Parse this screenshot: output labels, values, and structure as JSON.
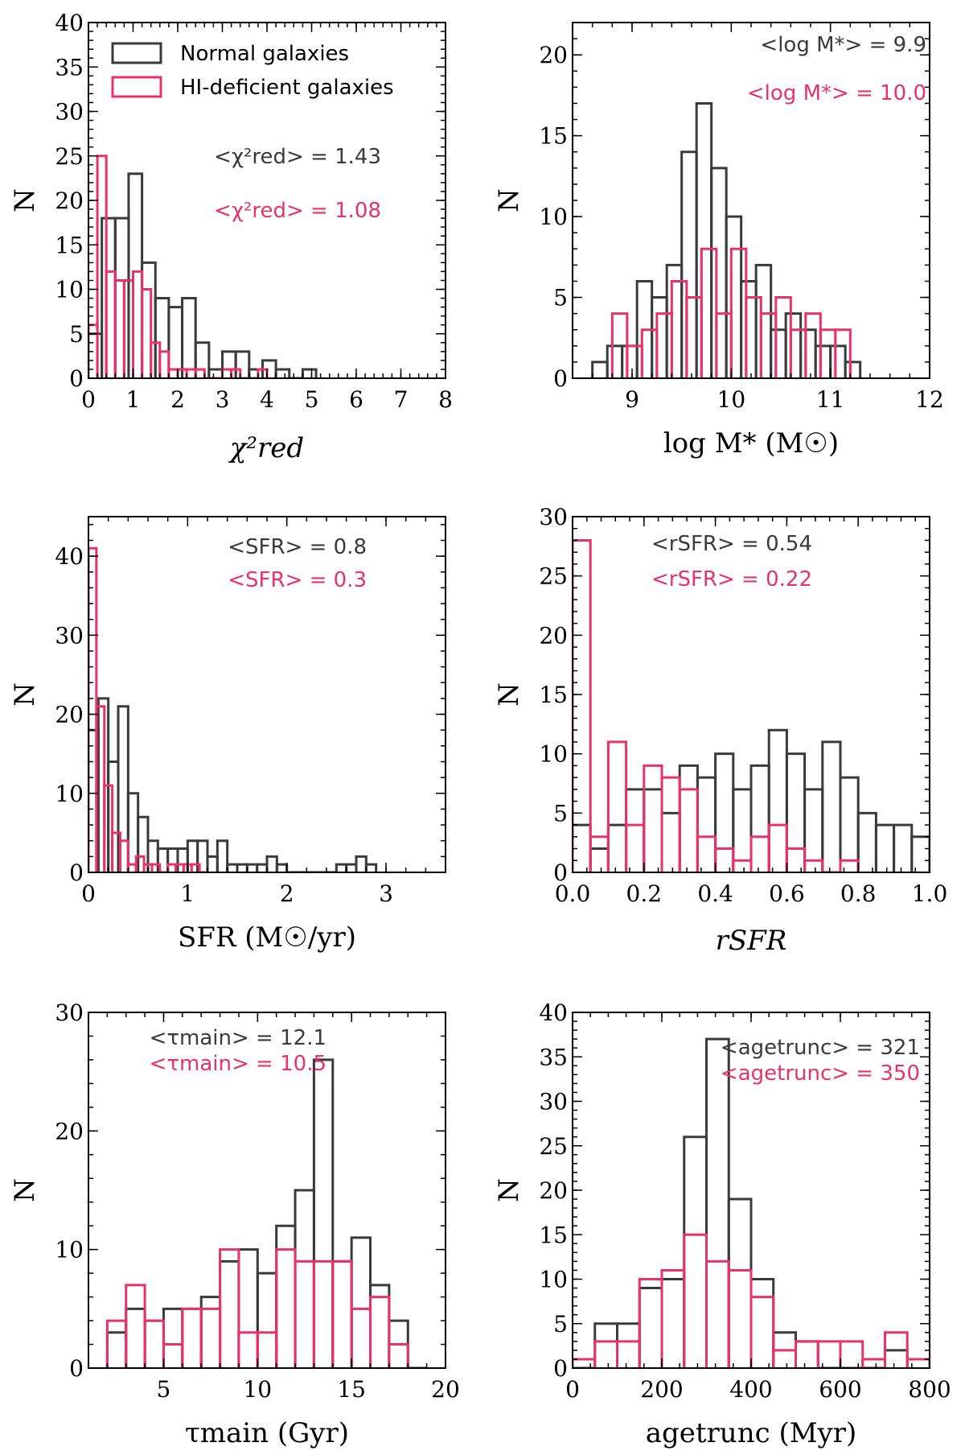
{
  "colors": {
    "normal": "#3a3a3a",
    "deficient": "#e8336a"
  },
  "legend": {
    "normal_label": "Normal galaxies",
    "deficient_label": "HI-deficient galaxies",
    "placement": "top-left of first panel"
  },
  "chart_data": [
    {
      "type": "histogram",
      "id": "chi2",
      "xlabel": "χ²red",
      "ylabel": "N",
      "xlim": [
        0,
        8
      ],
      "ylim": [
        0,
        40
      ],
      "xticks": [
        0,
        1,
        2,
        3,
        4,
        5,
        6,
        7,
        8
      ],
      "yticks": [
        0,
        5,
        10,
        15,
        20,
        25,
        30,
        35,
        40
      ],
      "annotations": [
        {
          "series": "normal",
          "text": "<χ²red> = 1.43",
          "value": 1.43
        },
        {
          "series": "deficient",
          "text": "<χ²red> = 1.08",
          "value": 1.08
        }
      ],
      "series": [
        {
          "name": "Normal galaxies",
          "key": "normal",
          "edges": [
            0,
            0.3,
            0.6,
            0.9,
            1.2,
            1.5,
            1.8,
            2.1,
            2.4,
            2.7,
            3.0,
            3.3,
            3.6,
            3.9,
            4.2,
            4.5,
            4.8,
            5.1
          ],
          "counts": [
            5,
            18,
            18,
            23,
            13,
            9,
            8,
            9,
            4,
            1,
            3,
            3,
            1,
            2,
            1,
            0,
            1
          ]
        },
        {
          "name": "HI-deficient galaxies",
          "key": "deficient",
          "edges": [
            0,
            0.2,
            0.4,
            0.6,
            0.8,
            1.0,
            1.2,
            1.4,
            1.6,
            1.8,
            2.0,
            2.2,
            2.4,
            2.6,
            2.8,
            3.0,
            3.2,
            3.4,
            3.6,
            3.8,
            4.0
          ],
          "counts": [
            6,
            25,
            12,
            11,
            11,
            12,
            10,
            4,
            3,
            1,
            1,
            1,
            1,
            0,
            0,
            1,
            1,
            0,
            0,
            1
          ]
        }
      ]
    },
    {
      "type": "histogram",
      "id": "mass",
      "xlabel": "log M* (M☉)",
      "ylabel": "N",
      "xlim": [
        8.4,
        12
      ],
      "ylim": [
        0,
        22
      ],
      "xticks": [
        9,
        10,
        11,
        12
      ],
      "yticks": [
        0,
        5,
        10,
        15,
        20
      ],
      "annotations": [
        {
          "series": "normal",
          "text": "<log M*> = 9.9",
          "value": 9.9
        },
        {
          "series": "deficient",
          "text": "<log M*> = 10.0",
          "value": 10.0
        }
      ],
      "series": [
        {
          "name": "Normal galaxies",
          "key": "normal",
          "edges": [
            8.6,
            8.75,
            8.9,
            9.05,
            9.2,
            9.35,
            9.5,
            9.65,
            9.8,
            9.95,
            10.1,
            10.25,
            10.4,
            10.55,
            10.7,
            10.85,
            11.0,
            11.15,
            11.3
          ],
          "counts": [
            1,
            2,
            2,
            6,
            5,
            7,
            14,
            17,
            13,
            10,
            6,
            7,
            3,
            4,
            3,
            2,
            2,
            1
          ]
        },
        {
          "name": "HI-deficient galaxies",
          "key": "deficient",
          "edges": [
            8.8,
            8.95,
            9.1,
            9.25,
            9.4,
            9.55,
            9.7,
            9.85,
            10.0,
            10.15,
            10.3,
            10.45,
            10.6,
            10.75,
            10.9,
            11.05,
            11.2
          ],
          "counts": [
            4,
            2,
            3,
            4,
            6,
            5,
            8,
            4,
            8,
            5,
            4,
            5,
            3,
            4,
            3,
            3,
            1
          ]
        }
      ]
    },
    {
      "type": "histogram",
      "id": "sfr",
      "xlabel": "SFR (M☉/yr)",
      "ylabel": "N",
      "xlim": [
        0,
        3.6
      ],
      "ylim": [
        0,
        45
      ],
      "xticks": [
        0,
        1,
        2,
        3
      ],
      "yticks": [
        0,
        10,
        20,
        30,
        40
      ],
      "annotations": [
        {
          "series": "normal",
          "text": "<SFR> = 0.8",
          "value": 0.8
        },
        {
          "series": "deficient",
          "text": "<SFR> = 0.3",
          "value": 0.3
        }
      ],
      "series": [
        {
          "name": "Normal galaxies",
          "key": "normal",
          "edges": [
            0,
            0.1,
            0.2,
            0.3,
            0.4,
            0.5,
            0.6,
            0.7,
            0.8,
            0.9,
            1.0,
            1.1,
            1.2,
            1.3,
            1.4,
            1.5,
            1.6,
            1.7,
            1.8,
            1.9,
            2.0,
            2.1,
            2.2,
            2.3,
            2.4,
            2.5,
            2.6,
            2.7,
            2.8,
            2.9
          ],
          "counts": [
            18,
            22,
            14,
            21,
            10,
            7,
            4,
            3,
            3,
            3,
            4,
            4,
            2,
            4,
            1,
            1,
            1,
            1,
            2,
            1,
            0,
            0,
            0,
            0,
            0,
            1,
            1,
            2,
            1
          ]
        },
        {
          "name": "HI-deficient galaxies",
          "key": "deficient",
          "edges": [
            0,
            0.08,
            0.16,
            0.24,
            0.32,
            0.4,
            0.48,
            0.56,
            0.64,
            0.72,
            0.8,
            0.88,
            0.96,
            1.04,
            1.12,
            1.2
          ],
          "counts": [
            41,
            21,
            11,
            5,
            4,
            1,
            2,
            1,
            1,
            0,
            1,
            1,
            1,
            1,
            0
          ]
        }
      ]
    },
    {
      "type": "histogram",
      "id": "rsfr",
      "xlabel": "rSFR",
      "ylabel": "N",
      "xlim": [
        0,
        1
      ],
      "ylim": [
        0,
        30
      ],
      "xticks": [
        0.0,
        0.2,
        0.4,
        0.6,
        0.8,
        1.0
      ],
      "yticks": [
        0,
        5,
        10,
        15,
        20,
        25,
        30
      ],
      "annotations": [
        {
          "series": "normal",
          "text": "<rSFR> = 0.54",
          "value": 0.54
        },
        {
          "series": "deficient",
          "text": "<rSFR> = 0.22",
          "value": 0.22
        }
      ],
      "series": [
        {
          "name": "Normal galaxies",
          "key": "normal",
          "edges": [
            0,
            0.05,
            0.1,
            0.15,
            0.2,
            0.25,
            0.3,
            0.35,
            0.4,
            0.45,
            0.5,
            0.55,
            0.6,
            0.65,
            0.7,
            0.75,
            0.8,
            0.85,
            0.9,
            0.95,
            1.0
          ],
          "counts": [
            4,
            2,
            4,
            7,
            7,
            5,
            9,
            8,
            10,
            7,
            9,
            12,
            10,
            7,
            11,
            8,
            5,
            4,
            4,
            3
          ]
        },
        {
          "name": "HI-deficient galaxies",
          "key": "deficient",
          "edges": [
            0,
            0.05,
            0.1,
            0.15,
            0.2,
            0.25,
            0.3,
            0.35,
            0.4,
            0.45,
            0.5,
            0.55,
            0.6,
            0.65,
            0.7,
            0.75,
            0.8
          ],
          "counts": [
            28,
            3,
            11,
            4,
            9,
            8,
            7,
            3,
            2,
            1,
            3,
            4,
            2,
            1,
            0,
            1
          ]
        }
      ]
    },
    {
      "type": "histogram",
      "id": "tau",
      "xlabel": "τmain (Gyr)",
      "ylabel": "N",
      "xlim": [
        1,
        20
      ],
      "ylim": [
        0,
        30
      ],
      "xticks": [
        5,
        10,
        15,
        20
      ],
      "yticks": [
        0,
        10,
        20,
        30
      ],
      "annotations": [
        {
          "series": "normal",
          "text": "<τmain> = 12.1",
          "value": 12.1
        },
        {
          "series": "deficient",
          "text": "<τmain> = 10.5",
          "value": 10.5
        }
      ],
      "series": [
        {
          "name": "Normal galaxies",
          "key": "normal",
          "edges": [
            2,
            3,
            4,
            5,
            6,
            7,
            8,
            9,
            10,
            11,
            12,
            13,
            14,
            15,
            16,
            17,
            18,
            19
          ],
          "counts": [
            3,
            5,
            4,
            5,
            5,
            6,
            9,
            10,
            8,
            12,
            15,
            26,
            9,
            11,
            7,
            4,
            0
          ]
        },
        {
          "name": "HI-deficient galaxies",
          "key": "deficient",
          "edges": [
            2,
            3,
            4,
            5,
            6,
            7,
            8,
            9,
            10,
            11,
            12,
            13,
            14,
            15,
            16,
            17,
            18
          ],
          "counts": [
            4,
            7,
            4,
            2,
            5,
            5,
            10,
            3,
            3,
            10,
            9,
            9,
            9,
            5,
            6,
            2
          ]
        }
      ]
    },
    {
      "type": "histogram",
      "id": "age",
      "xlabel": "agetrunc (Myr)",
      "ylabel": "N",
      "xlim": [
        0,
        800
      ],
      "ylim": [
        0,
        40
      ],
      "xticks": [
        0,
        200,
        400,
        600,
        800
      ],
      "yticks": [
        0,
        5,
        10,
        15,
        20,
        25,
        30,
        35,
        40
      ],
      "annotations": [
        {
          "series": "normal",
          "text": "<agetrunc> = 321",
          "value": 321
        },
        {
          "series": "deficient",
          "text": "<agetrunc> = 350",
          "value": 350
        }
      ],
      "series": [
        {
          "name": "Normal galaxies",
          "key": "normal",
          "edges": [
            0,
            50,
            100,
            150,
            200,
            250,
            300,
            350,
            400,
            450,
            500,
            550,
            600,
            650,
            700,
            750,
            800
          ],
          "counts": [
            0,
            5,
            5,
            9,
            10,
            26,
            37,
            19,
            10,
            4,
            3,
            0,
            0,
            0,
            2,
            1
          ]
        },
        {
          "name": "HI-deficient galaxies",
          "key": "deficient",
          "edges": [
            0,
            50,
            100,
            150,
            200,
            250,
            300,
            350,
            400,
            450,
            500,
            550,
            600,
            650,
            700,
            750,
            800
          ],
          "counts": [
            1,
            3,
            3,
            10,
            11,
            15,
            12,
            11,
            8,
            2,
            3,
            3,
            3,
            1,
            4,
            1
          ]
        }
      ]
    }
  ]
}
